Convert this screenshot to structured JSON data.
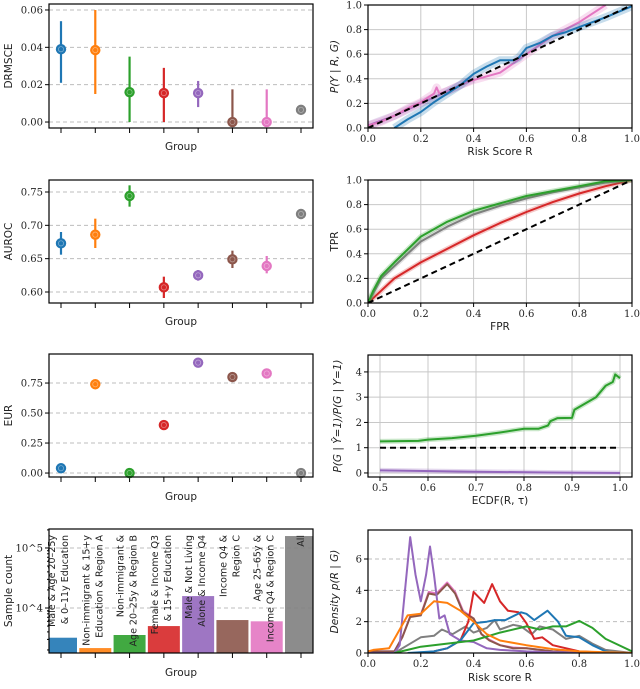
{
  "colors": [
    "#1f77b4",
    "#ff7f0e",
    "#2ca02c",
    "#d62728",
    "#9467bd",
    "#8c564b",
    "#e377c2",
    "#7f7f7f"
  ],
  "groups": [
    [
      "Male & Age 20–25y",
      "& 0–11y Education"
    ],
    [
      "Non-immigrant & 15+y",
      "Education & Region A"
    ],
    [
      "Non-immigrant &",
      "Age 20–25y & Region B"
    ],
    [
      "Female & Income Q3",
      "& 15+y Education"
    ],
    [
      "Male & Not Living",
      "Alone & Income Q4"
    ],
    [
      "Income Q4 &",
      "Region C"
    ],
    [
      "Age 25–65y &",
      "Income Q4 & Region C"
    ],
    [
      "All"
    ]
  ],
  "chart_data": [
    {
      "type": "scatter",
      "ylabel": "DRMSCE",
      "xlabel": "Group",
      "ylim": [
        -0.0032,
        0.0632
      ],
      "yticks": [
        0,
        0.02,
        0.04,
        0.06
      ],
      "ytick_labels": [
        "0.00",
        "0.02",
        "0.04",
        "0.06"
      ],
      "grid": "y-dashed",
      "values": [
        0.039,
        0.0385,
        0.016,
        0.0155,
        0.0155,
        0,
        0,
        0.0065
      ],
      "ci": [
        [
          0.021,
          0.054
        ],
        [
          0.015,
          0.06
        ],
        [
          0,
          0.035
        ],
        [
          0,
          0.029
        ],
        [
          0.008,
          0.022
        ],
        [
          0,
          0.0175
        ],
        [
          0,
          0.0175
        ],
        [
          0.0045,
          0.0085
        ]
      ]
    },
    {
      "type": "scatter",
      "ylabel": "AUROC",
      "xlabel": "Group",
      "ylim": [
        0.5835,
        0.768
      ],
      "yticks": [
        0.6,
        0.65,
        0.7,
        0.75
      ],
      "ytick_labels": [
        "0.60",
        "0.65",
        "0.70",
        "0.75"
      ],
      "grid": "y-dashed",
      "values": [
        0.673,
        0.686,
        0.744,
        0.607,
        0.625,
        0.649,
        0.639,
        0.717
      ],
      "ci": [
        [
          0.656,
          0.69
        ],
        [
          0.666,
          0.71
        ],
        [
          0.728,
          0.76
        ],
        [
          0.591,
          0.623
        ],
        [
          0.617,
          0.633
        ],
        [
          0.636,
          0.662
        ],
        [
          0.628,
          0.654
        ],
        [
          0.714,
          0.72
        ]
      ]
    },
    {
      "type": "scatter",
      "ylabel": "EUR",
      "xlabel": "Group",
      "ylim": [
        -0.033,
        0.992
      ],
      "yticks": [
        0,
        0.25,
        0.5,
        0.75
      ],
      "ytick_labels": [
        "0.00",
        "0.25",
        "0.50",
        "0.75"
      ],
      "grid": "y-dashed",
      "values": [
        0.04,
        0.74,
        0.0,
        0.4,
        0.92,
        0.8,
        0.83,
        0.0
      ]
    },
    {
      "type": "bar",
      "ylabel": "Sample count",
      "xlabel": "Group",
      "yscale": "log",
      "ylim": [
        1780,
        207000
      ],
      "yticks": [
        10000,
        100000
      ],
      "ytick_labels": [
        "10^4",
        "10^5"
      ],
      "values": [
        3200,
        2150,
        3550,
        5000,
        15800,
        6300,
        6000,
        158000
      ]
    },
    {
      "type": "line",
      "ylabel": "P(Y | R, G)",
      "xlabel": "Risk Score R",
      "xlim": [
        0,
        1
      ],
      "ylim": [
        0,
        1
      ],
      "xticks": [
        0,
        0.2,
        0.4,
        0.6,
        0.8,
        1.0
      ],
      "xtick_labels": [
        "0.0",
        "0.2",
        "0.4",
        "0.6",
        "0.8",
        "1.0"
      ],
      "yticks": [
        0,
        0.2,
        0.4,
        0.6,
        0.8,
        1.0
      ],
      "ytick_labels": [
        "0.0",
        "0.2",
        "0.4",
        "0.6",
        "0.8",
        "1.0"
      ],
      "grid": "both",
      "series": [
        {
          "color": "#9467bd",
          "x": [
            0,
            0.1,
            0.2,
            0.3,
            0.4
          ],
          "y": [
            0.02,
            0.1,
            0.2,
            0.3,
            0.4
          ]
        },
        {
          "color": "#e377c2",
          "x": [
            0,
            0.05,
            0.1,
            0.15,
            0.2,
            0.25,
            0.26,
            0.27,
            0.3,
            0.35,
            0.4,
            0.5,
            0.6,
            0.7,
            0.8,
            0.9
          ],
          "y": [
            0.02,
            0.05,
            0.1,
            0.16,
            0.21,
            0.28,
            0.33,
            0.28,
            0.3,
            0.35,
            0.39,
            0.45,
            0.6,
            0.75,
            0.86,
            1.0
          ]
        },
        {
          "color": "#1f77b4",
          "x": [
            0.1,
            0.15,
            0.2,
            0.25,
            0.3,
            0.35,
            0.4,
            0.45,
            0.5,
            0.55,
            0.57,
            0.6,
            0.65,
            0.7,
            0.75,
            0.8,
            0.9,
            1.0
          ],
          "y": [
            0,
            0.07,
            0.13,
            0.21,
            0.28,
            0.35,
            0.44,
            0.5,
            0.55,
            0.55,
            0.57,
            0.65,
            0.69,
            0.75,
            0.78,
            0.82,
            0.9,
            0.99
          ]
        }
      ],
      "reference": {
        "x": [
          0,
          1
        ],
        "y": [
          0,
          1
        ]
      }
    },
    {
      "type": "line",
      "ylabel": "TPR",
      "xlabel": "FPR",
      "xlim": [
        0,
        1
      ],
      "ylim": [
        0,
        1
      ],
      "xticks": [
        0,
        0.2,
        0.4,
        0.6,
        0.8,
        1.0
      ],
      "xtick_labels": [
        "0.0",
        "0.2",
        "0.4",
        "0.6",
        "0.8",
        "1.0"
      ],
      "yticks": [
        0,
        0.2,
        0.4,
        0.6,
        0.8,
        1.0
      ],
      "ytick_labels": [
        "0.0",
        "0.2",
        "0.4",
        "0.6",
        "0.8",
        "1.0"
      ],
      "grid": "both",
      "series": [
        {
          "color": "#d62728",
          "x": [
            0,
            0.05,
            0.1,
            0.2,
            0.3,
            0.4,
            0.5,
            0.6,
            0.7,
            0.8,
            0.9,
            1
          ],
          "y": [
            0,
            0.1,
            0.2,
            0.33,
            0.44,
            0.55,
            0.65,
            0.74,
            0.82,
            0.89,
            0.95,
            1
          ]
        },
        {
          "color": "#7f7f7f",
          "x": [
            0,
            0.05,
            0.1,
            0.2,
            0.3,
            0.4,
            0.5,
            0.6,
            0.7,
            0.8,
            0.9,
            1
          ],
          "y": [
            0,
            0.2,
            0.3,
            0.5,
            0.62,
            0.72,
            0.79,
            0.85,
            0.9,
            0.94,
            0.98,
            1
          ]
        },
        {
          "color": "#2ca02c",
          "x": [
            0,
            0.02,
            0.05,
            0.1,
            0.2,
            0.3,
            0.4,
            0.5,
            0.6,
            0.7,
            0.8,
            0.9,
            1
          ],
          "y": [
            0,
            0.1,
            0.22,
            0.33,
            0.54,
            0.66,
            0.75,
            0.81,
            0.87,
            0.91,
            0.95,
            0.99,
            1
          ]
        }
      ],
      "reference": {
        "x": [
          0,
          1
        ],
        "y": [
          0,
          1
        ]
      }
    },
    {
      "type": "line",
      "ylabel": "P(G | Ŷ=1)/P(G | Y=1)",
      "xlabel": "ECDF(R, τ)",
      "xlim": [
        0.475,
        1.025
      ],
      "ylim": [
        -0.16,
        4.67
      ],
      "xticks": [
        0.5,
        0.6,
        0.7,
        0.8,
        0.9,
        1.0
      ],
      "xtick_labels": [
        "0.5",
        "0.6",
        "0.7",
        "0.8",
        "0.9",
        "1.0"
      ],
      "yticks": [
        0,
        1,
        2,
        3,
        4
      ],
      "ytick_labels": [
        "0",
        "1",
        "2",
        "3",
        "4"
      ],
      "grid": "both",
      "series": [
        {
          "color": "#9467bd",
          "x": [
            0.5,
            0.7,
            0.85,
            1.0
          ],
          "y": [
            0.1,
            0.05,
            0.02,
            0.0
          ]
        },
        {
          "color": "#2ca02c",
          "x": [
            0.5,
            0.58,
            0.6,
            0.65,
            0.7,
            0.75,
            0.8,
            0.83,
            0.85,
            0.855,
            0.87,
            0.9,
            0.905,
            0.95,
            0.97,
            0.985,
            0.99,
            1.0
          ],
          "y": [
            1.25,
            1.27,
            1.32,
            1.38,
            1.47,
            1.6,
            1.75,
            1.75,
            1.88,
            2.05,
            2.17,
            2.18,
            2.5,
            3.0,
            3.45,
            3.6,
            3.9,
            3.75
          ]
        }
      ],
      "reference": {
        "x": [
          0.5,
          1.0
        ],
        "y": [
          1,
          1
        ]
      }
    },
    {
      "type": "line",
      "ylabel": "Density p(R | G)",
      "xlabel": "Risk score R",
      "xlim": [
        0,
        1
      ],
      "ylim": [
        0,
        7.85
      ],
      "xticks": [
        0,
        0.2,
        0.4,
        0.6,
        0.8,
        1.0
      ],
      "xtick_labels": [
        "0.0",
        "0.2",
        "0.4",
        "0.6",
        "0.8",
        "1.0"
      ],
      "yticks": [
        0,
        2,
        4,
        6
      ],
      "ytick_labels": [
        "0",
        "2",
        "4",
        "6"
      ],
      "grid": "y-dashed",
      "series": [
        {
          "color": "#e377c2",
          "x": [
            0,
            0.1,
            0.13,
            0.16,
            0.2,
            0.23,
            0.26,
            0.3,
            0.33,
            0.36,
            0.4,
            0.43,
            0.46,
            0.5,
            0.55,
            0.6,
            0.7,
            0.8,
            1
          ],
          "y": [
            0.1,
            0.1,
            1,
            2.35,
            2.45,
            3.9,
            3.8,
            4.5,
            3.9,
            2.7,
            2.2,
            1.2,
            0.85,
            0.5,
            0.35,
            0.3,
            0.1,
            0.05,
            0
          ]
        },
        {
          "color": "#8c564b",
          "x": [
            0,
            0.1,
            0.13,
            0.16,
            0.2,
            0.23,
            0.26,
            0.3,
            0.33,
            0.36,
            0.4,
            0.43,
            0.46,
            0.5,
            0.55,
            0.6,
            0.7,
            0.8,
            1
          ],
          "y": [
            0.1,
            0.1,
            1,
            2.3,
            2.4,
            3.8,
            3.7,
            4.4,
            3.8,
            2.6,
            2.2,
            1.2,
            0.8,
            0.5,
            0.3,
            0.3,
            0.1,
            0.05,
            0
          ]
        },
        {
          "color": "#7f7f7f",
          "x": [
            0.1,
            0.15,
            0.2,
            0.25,
            0.28,
            0.32,
            0.37,
            0.4,
            0.45,
            0.48,
            0.5,
            0.55,
            0.58,
            0.62,
            0.65,
            0.7,
            0.75,
            0.8,
            0.85,
            0.9,
            1
          ],
          "y": [
            0,
            0.5,
            1.0,
            1.1,
            1.5,
            1.2,
            1.7,
            1.3,
            1.6,
            2.1,
            1.5,
            1.8,
            1.7,
            1.2,
            1.7,
            1.5,
            0.9,
            1.1,
            0.6,
            0.2,
            0
          ]
        },
        {
          "color": "#9467bd",
          "x": [
            0,
            0.1,
            0.12,
            0.14,
            0.16,
            0.18,
            0.2,
            0.22,
            0.235,
            0.25,
            0.27,
            0.29,
            0.31,
            0.35,
            0.4,
            0.45,
            0.5,
            0.6,
            0.7,
            1
          ],
          "y": [
            0,
            0,
            0.5,
            4,
            7.4,
            5,
            3.3,
            5,
            6.8,
            5,
            2.2,
            2.4,
            1.2,
            0.8,
            0.7,
            0.3,
            0.2,
            0.1,
            0.05,
            0
          ]
        },
        {
          "color": "#d62728",
          "x": [
            0.2,
            0.25,
            0.3,
            0.35,
            0.38,
            0.4,
            0.44,
            0.47,
            0.5,
            0.53,
            0.57,
            0.6,
            0.63,
            0.66,
            0.7,
            0.8,
            0.9,
            1
          ],
          "y": [
            0,
            0.1,
            0.3,
            0.8,
            2.0,
            3.9,
            3.2,
            4.4,
            3.3,
            2.7,
            2.6,
            1.9,
            0.9,
            1.0,
            0.5,
            0.1,
            0.02,
            0
          ]
        },
        {
          "color": "#1f77b4",
          "x": [
            0.15,
            0.25,
            0.3,
            0.35,
            0.4,
            0.45,
            0.48,
            0.52,
            0.58,
            0.6,
            0.63,
            0.68,
            0.72,
            0.75,
            0.8,
            0.85,
            0.9,
            0.93
          ],
          "y": [
            0,
            0.1,
            0.3,
            0.8,
            1.9,
            2.0,
            2.1,
            2.1,
            2.6,
            2.5,
            2.1,
            2.7,
            2.0,
            1.1,
            1.0,
            0.5,
            0.1,
            0
          ]
        },
        {
          "color": "#2ca02c",
          "x": [
            0.1,
            0.15,
            0.2,
            0.3,
            0.4,
            0.5,
            0.6,
            0.65,
            0.7,
            0.75,
            0.8,
            0.85,
            0.9,
            1
          ],
          "y": [
            0,
            0.2,
            0.4,
            0.6,
            0.8,
            1.3,
            1.7,
            1.5,
            1.7,
            1.7,
            2.05,
            1.6,
            0.9,
            0.1
          ]
        },
        {
          "color": "#ff7f0e",
          "x": [
            0,
            0.02,
            0.08,
            0.12,
            0.15,
            0.2,
            0.25,
            0.3,
            0.35,
            0.4,
            0.45,
            0.5,
            0.6,
            0.7,
            0.8,
            0.9,
            1
          ],
          "y": [
            0.1,
            0.2,
            0.3,
            1.5,
            2.4,
            2.5,
            3.3,
            3.2,
            2.7,
            2.0,
            1.2,
            0.8,
            0.5,
            0.25,
            0.1,
            0.05,
            0
          ]
        }
      ]
    }
  ]
}
